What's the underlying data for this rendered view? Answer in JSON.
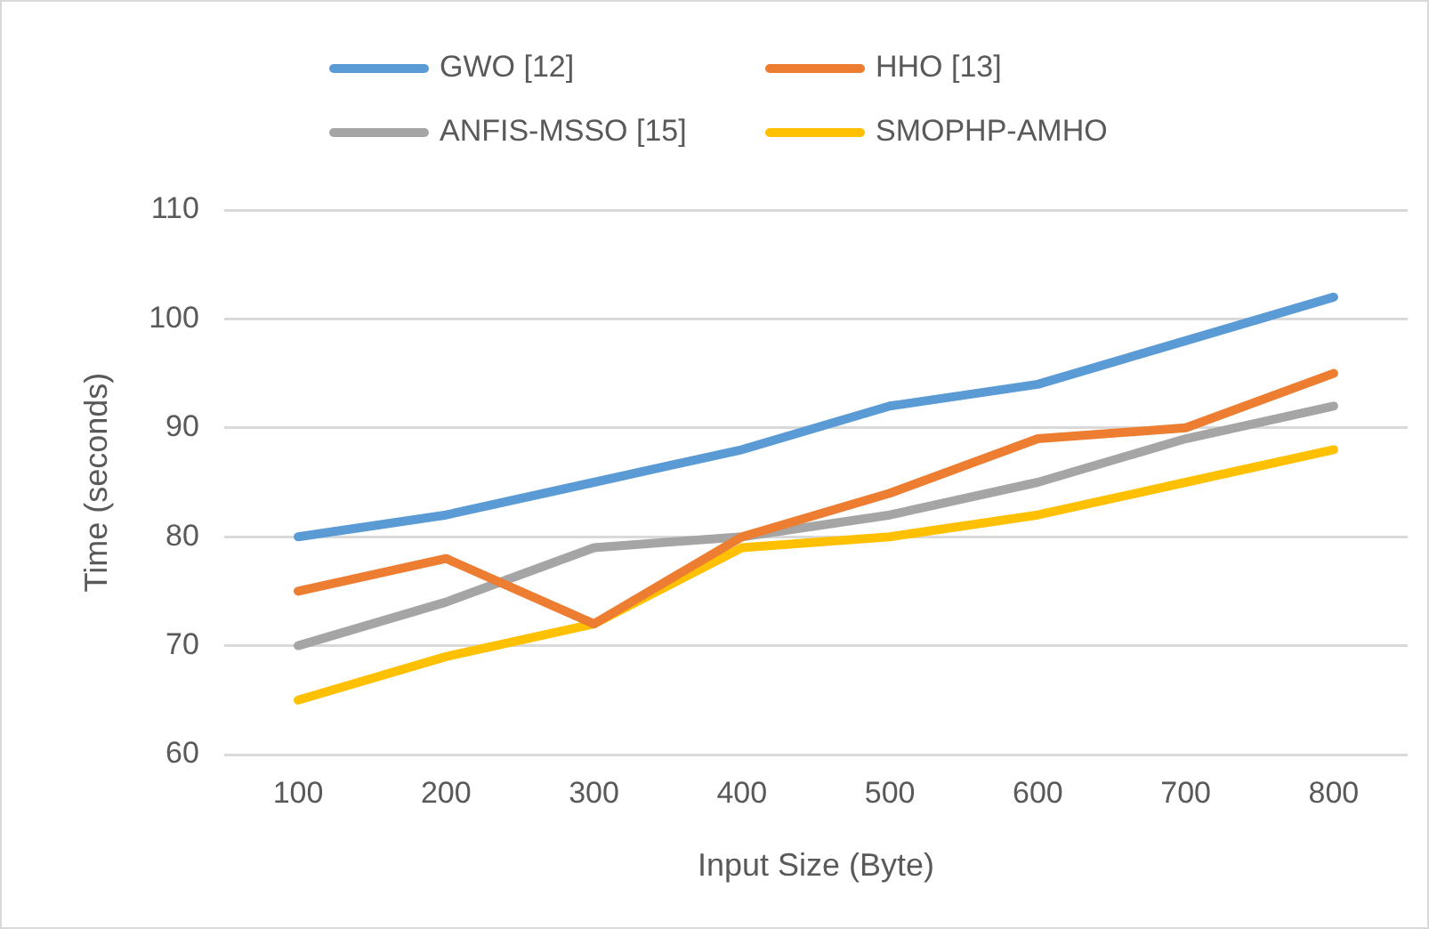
{
  "chart_data": {
    "type": "line",
    "xlabel": "Input Size (Byte)",
    "ylabel": "Time (seconds)",
    "categories": [
      "100",
      "200",
      "300",
      "400",
      "500",
      "600",
      "700",
      "800"
    ],
    "series": [
      {
        "name": "GWO [12]",
        "color": "#5b9bd5",
        "values": [
          80,
          82,
          85,
          88,
          92,
          94,
          98,
          102
        ]
      },
      {
        "name": "HHO [13]",
        "color": "#ed7d31",
        "values": [
          75,
          78,
          72,
          80,
          84,
          89,
          90,
          95
        ]
      },
      {
        "name": "ANFIS-MSSO [15]",
        "color": "#a5a5a5",
        "values": [
          70,
          74,
          79,
          80,
          82,
          85,
          89,
          92
        ]
      },
      {
        "name": "SMOPHP-AMHO",
        "color": "#ffc000",
        "values": [
          65,
          69,
          72,
          79,
          80,
          82,
          85,
          88
        ]
      }
    ],
    "ylim": [
      60,
      110
    ],
    "yticks": [
      60,
      70,
      80,
      90,
      100,
      110
    ],
    "grid": "y",
    "legend": "top",
    "marker": "none",
    "line_style": "solid"
  }
}
